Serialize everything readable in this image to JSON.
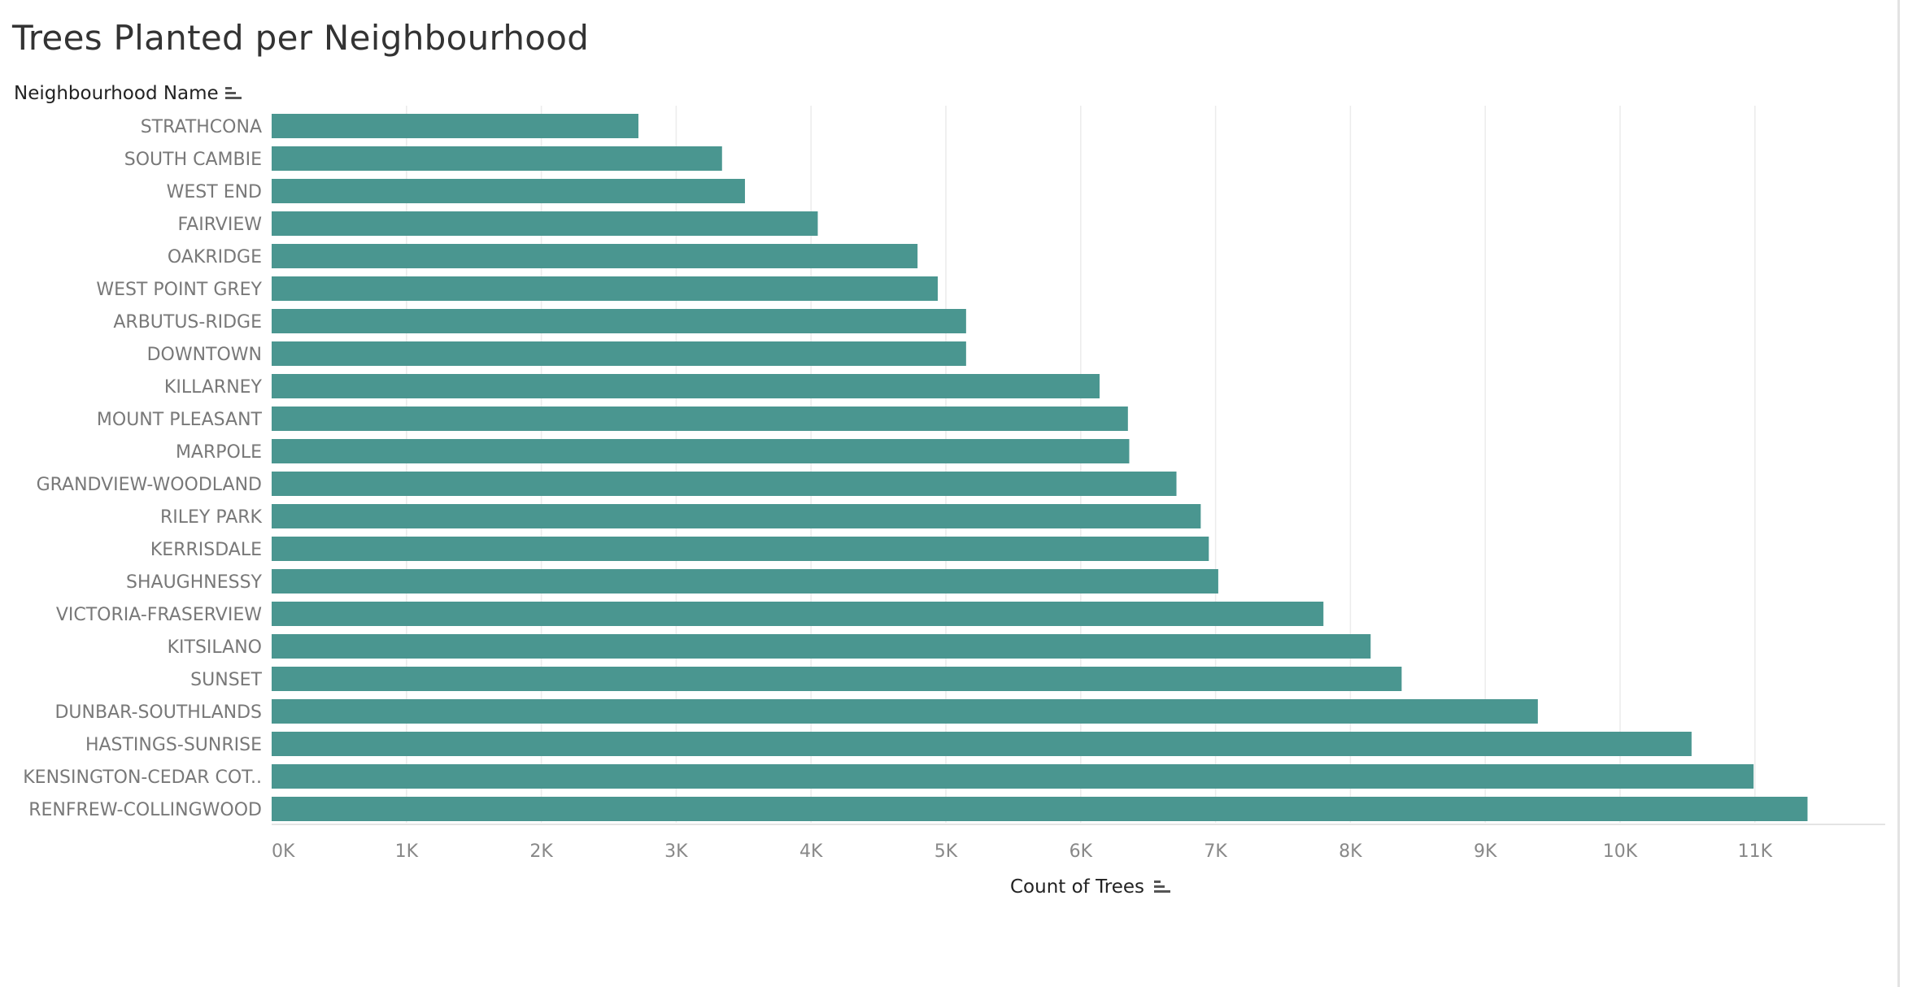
{
  "title": "Trees Planted per Neighbourhood",
  "row_header": "Neighbourhood Name",
  "x_header": "Count of Trees",
  "colors": {
    "bar": "#4a9690",
    "grid": "#ececec",
    "axis_line": "#dcdcdc"
  },
  "icons": {
    "sort": "sort-descending-icon"
  },
  "chart_data": {
    "type": "bar",
    "orientation": "horizontal",
    "categories": [
      "STRATHCONA",
      "SOUTH CAMBIE",
      "WEST END",
      "FAIRVIEW",
      "OAKRIDGE",
      "WEST POINT GREY",
      "ARBUTUS-RIDGE",
      "DOWNTOWN",
      "KILLARNEY",
      "MOUNT PLEASANT",
      "MARPOLE",
      "GRANDVIEW-WOODLAND",
      "RILEY PARK",
      "KERRISDALE",
      "SHAUGHNESSY",
      "VICTORIA-FRASERVIEW",
      "KITSILANO",
      "SUNSET",
      "DUNBAR-SOUTHLANDS",
      "HASTINGS-SUNRISE",
      "KENSINGTON-CEDAR COT..",
      "RENFREW-COLLINGWOOD"
    ],
    "values": [
      2720,
      3340,
      3510,
      4050,
      4790,
      4940,
      5150,
      5150,
      6140,
      6350,
      6360,
      6710,
      6890,
      6950,
      7020,
      7800,
      8150,
      8380,
      9390,
      10530,
      10990,
      11390
    ],
    "xlabel": "Count of Trees",
    "ylabel": "Neighbourhood Name",
    "xlim": [
      0,
      12000
    ],
    "xticks": [
      "0K",
      "1K",
      "2K",
      "3K",
      "4K",
      "5K",
      "6K",
      "7K",
      "8K",
      "9K",
      "10K",
      "11K"
    ],
    "grid": true,
    "legend": "none"
  }
}
